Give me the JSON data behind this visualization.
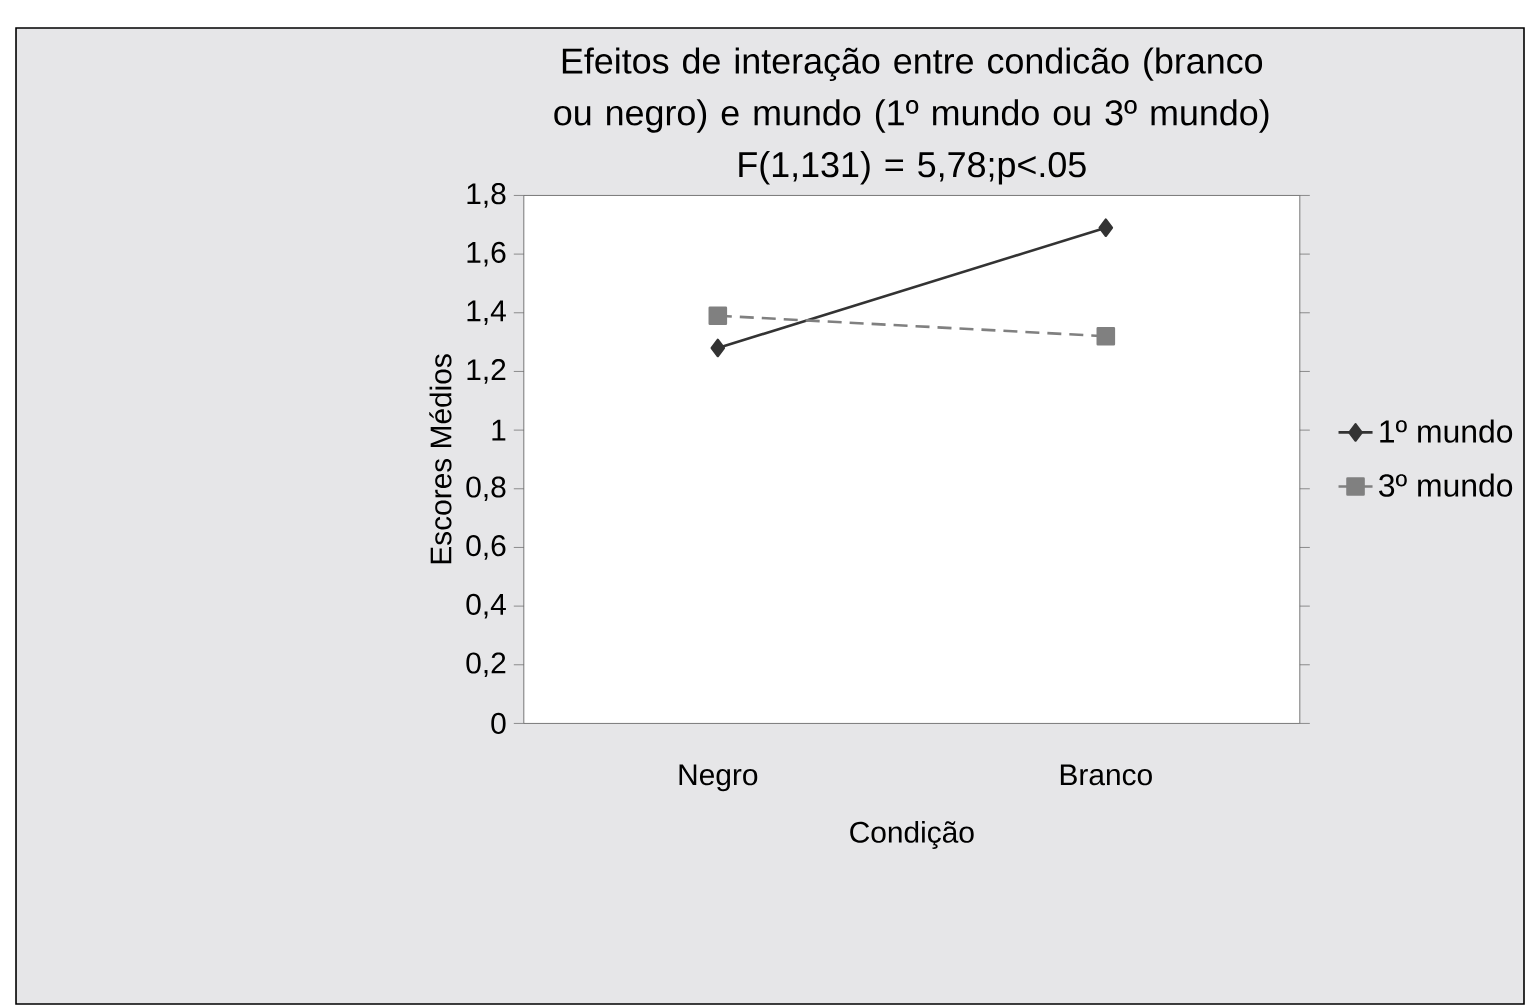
{
  "chart_data": {
    "type": "line",
    "title": "Efeitos de interação entre condicão (branco ou negro) e mundo (1º mundo ou 3º mundo)",
    "subtitle": "F(1,131) = 5,78;p<.05",
    "xlabel": "Condição",
    "ylabel": "Escores Médios",
    "categories": [
      "Negro",
      "Branco"
    ],
    "series": [
      {
        "name": "1º mundo",
        "color": "#333333",
        "marker": "diamond",
        "line_style": "solid",
        "values": [
          1.28,
          1.69
        ]
      },
      {
        "name": "3º mundo",
        "color": "#808080",
        "marker": "square",
        "line_style": "dashed",
        "values": [
          1.39,
          1.32
        ]
      }
    ],
    "ylim": [
      0,
      1.8
    ],
    "yticks": [
      {
        "value": 0,
        "label": "0"
      },
      {
        "value": 0.2,
        "label": "0,2"
      },
      {
        "value": 0.4,
        "label": "0,4"
      },
      {
        "value": 0.6,
        "label": "0,6"
      },
      {
        "value": 0.8,
        "label": "0,8"
      },
      {
        "value": 1,
        "label": "1"
      },
      {
        "value": 1.2,
        "label": "1,2"
      },
      {
        "value": 1.4,
        "label": "1,4"
      },
      {
        "value": 1.6,
        "label": "1,6"
      },
      {
        "value": 1.8,
        "label": "1,8"
      }
    ],
    "grid": false,
    "legend": "right"
  }
}
